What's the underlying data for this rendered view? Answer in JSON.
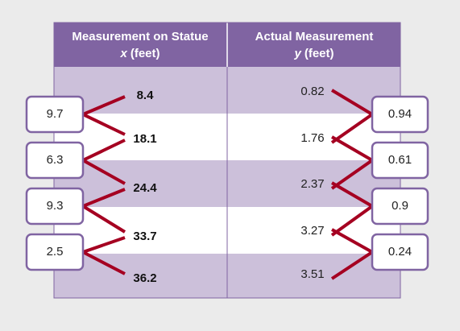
{
  "table": {
    "columns": [
      {
        "title": "Measurement on Statue",
        "variable": "x",
        "unit": "(feet)"
      },
      {
        "title": "Actual Measurement",
        "variable": "y",
        "unit": "(feet)"
      }
    ],
    "x_values": [
      "8.4",
      "18.1",
      "24.4",
      "33.7",
      "36.2"
    ],
    "y_values": [
      "0.82",
      "1.76",
      "2.37",
      "3.27",
      "3.51"
    ]
  },
  "left_differences": [
    "9.7",
    "6.3",
    "9.3",
    "2.5"
  ],
  "right_differences": [
    "0.94",
    "0.61",
    "0.9",
    "0.24"
  ]
}
